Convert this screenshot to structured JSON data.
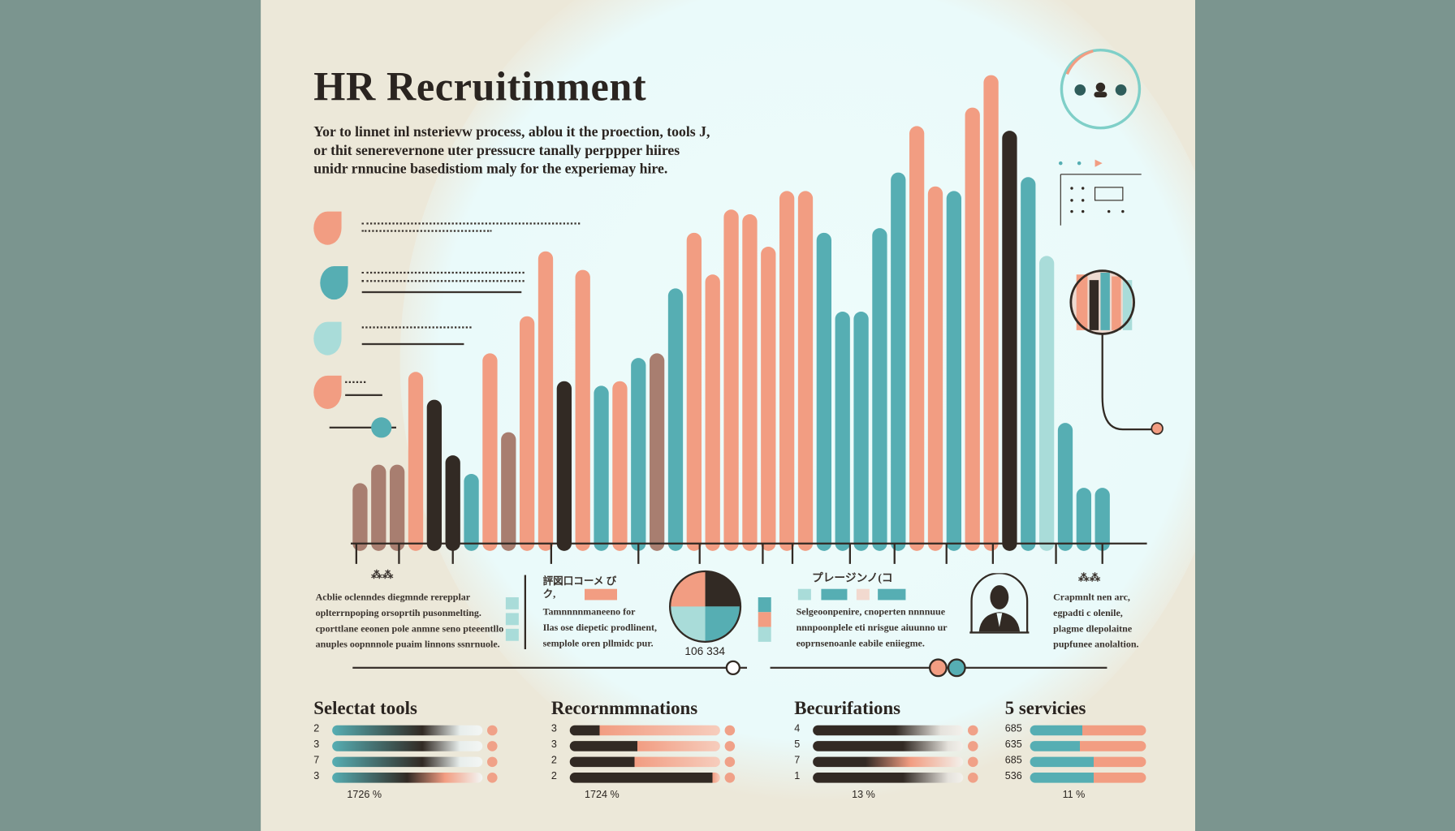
{
  "title": "HR Recruitinment",
  "intro": [
    "Yor to  linnet inl nsterievw process, ablou it the proection, tools J,",
    "or thit senerevernone uter pressucre tanally perppper hiires",
    "unidr rnnucine basedistiom maly for the experiemay hire."
  ],
  "colors": {
    "salmon": "#f29d82",
    "teal": "#56aeb3",
    "paleteal": "#a9dcd9",
    "dark": "#322a24",
    "brown": "#a87e70",
    "bg": "#ece8d9",
    "side": "#7b958f"
  },
  "chart_data": {
    "type": "bar",
    "title": "HR Recruitinment",
    "xlabel": "",
    "ylabel": "",
    "ylim": [
      0,
      105
    ],
    "values": [
      13,
      17,
      17,
      37,
      31,
      19,
      15,
      41,
      24,
      49,
      63,
      35,
      59,
      34,
      35,
      40,
      41,
      55,
      67,
      58,
      72,
      71,
      64,
      76,
      76,
      67,
      50,
      50,
      68,
      80,
      90,
      77,
      76,
      94,
      101,
      89,
      79,
      62,
      26,
      12,
      12
    ],
    "colors": [
      "brown",
      "brown",
      "brown",
      "salmon",
      "dark",
      "dark",
      "teal",
      "salmon",
      "brown",
      "salmon",
      "salmon",
      "dark",
      "salmon",
      "teal",
      "salmon",
      "teal",
      "brown",
      "teal",
      "salmon",
      "salmon",
      "salmon",
      "salmon",
      "salmon",
      "salmon",
      "salmon",
      "teal",
      "teal",
      "teal",
      "teal",
      "teal",
      "salmon",
      "salmon",
      "teal",
      "salmon",
      "salmon",
      "dark",
      "teal",
      "paleteal",
      "teal",
      "teal",
      "teal"
    ]
  },
  "columns": [
    {
      "heading": "⁂⁂",
      "text": [
        "Acblie oclenndes diegmnde rerepplar",
        "oplterrnpoping orsoprtih pusonmelting.",
        "cporttlane eeonen pole anmne seno pteeentllo",
        "anuples oopnnnole puaim linnons ssnrnuole."
      ]
    },
    {
      "heading": "評図口コーメ びク,",
      "text": [
        "Tamnnnnmaneeno for",
        "Ilas ose diepetic prodlinent,",
        "semplole oren pllmidc pur."
      ]
    },
    {
      "heading": "プレージンノ(コ",
      "text": [
        "Selgeoonpenire, cnoperten nnnnuue",
        "nnnpoonplele eti nrisgue aiuunno ur",
        "eoprnsenoanle eabile eniiegme."
      ]
    },
    {
      "heading": "⁂⁂",
      "text": [
        "Crapmnlt nen arc,",
        "egpadti c olenile,",
        "plagme dlepolaitne",
        "pupfunee anolaltion."
      ]
    }
  ],
  "pie_label": "106 334",
  "pie_value_fraction": 0.25,
  "sections": [
    {
      "title": "Selectat tools",
      "rows": [
        {
          "label": "2",
          "fill": 0.6
        },
        {
          "label": "3",
          "fill": 0.6
        },
        {
          "label": "7",
          "fill": 0.6
        },
        {
          "label": "3",
          "fill": 0.5
        }
      ],
      "footer": "1726 %",
      "style": "teal-dark"
    },
    {
      "title": "Recornmmnations",
      "rows": [
        {
          "label": "3",
          "fill": 0.2
        },
        {
          "label": "3",
          "fill": 0.45
        },
        {
          "label": "2",
          "fill": 0.43
        },
        {
          "label": "2",
          "fill": 0.95
        }
      ],
      "footer": "1724 %",
      "style": "dark-salmon"
    },
    {
      "title": "Becurifations",
      "rows": [
        {
          "label": "4",
          "fill": 0.55
        },
        {
          "label": "5",
          "fill": 0.6
        },
        {
          "label": "7",
          "fill": 0.35
        },
        {
          "label": "1",
          "fill": 0.6
        }
      ],
      "footer": "13 %",
      "style": "dark-fade"
    },
    {
      "title": "5  servicies",
      "rows": [
        {
          "label": "685",
          "fill": 0.45
        },
        {
          "label": "635",
          "fill": 0.43
        },
        {
          "label": "685",
          "fill": 0.55
        },
        {
          "label": "536",
          "fill": 0.55
        }
      ],
      "footer": "11 %",
      "style": "teal-salmon"
    }
  ]
}
